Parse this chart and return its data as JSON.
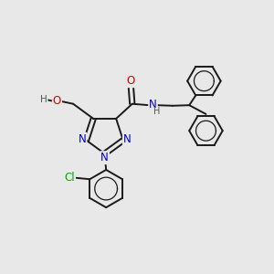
{
  "bg_color": "#e8e8e8",
  "bond_color": "#1a1a1a",
  "atom_colors": {
    "N": "#0000cc",
    "O": "#cc0000",
    "Cl": "#00aa00",
    "H": "#555555",
    "C": "#1a1a1a"
  },
  "line_width": 1.4,
  "font_size": 8.5,
  "figsize": [
    3.0,
    3.0
  ],
  "dpi": 100
}
